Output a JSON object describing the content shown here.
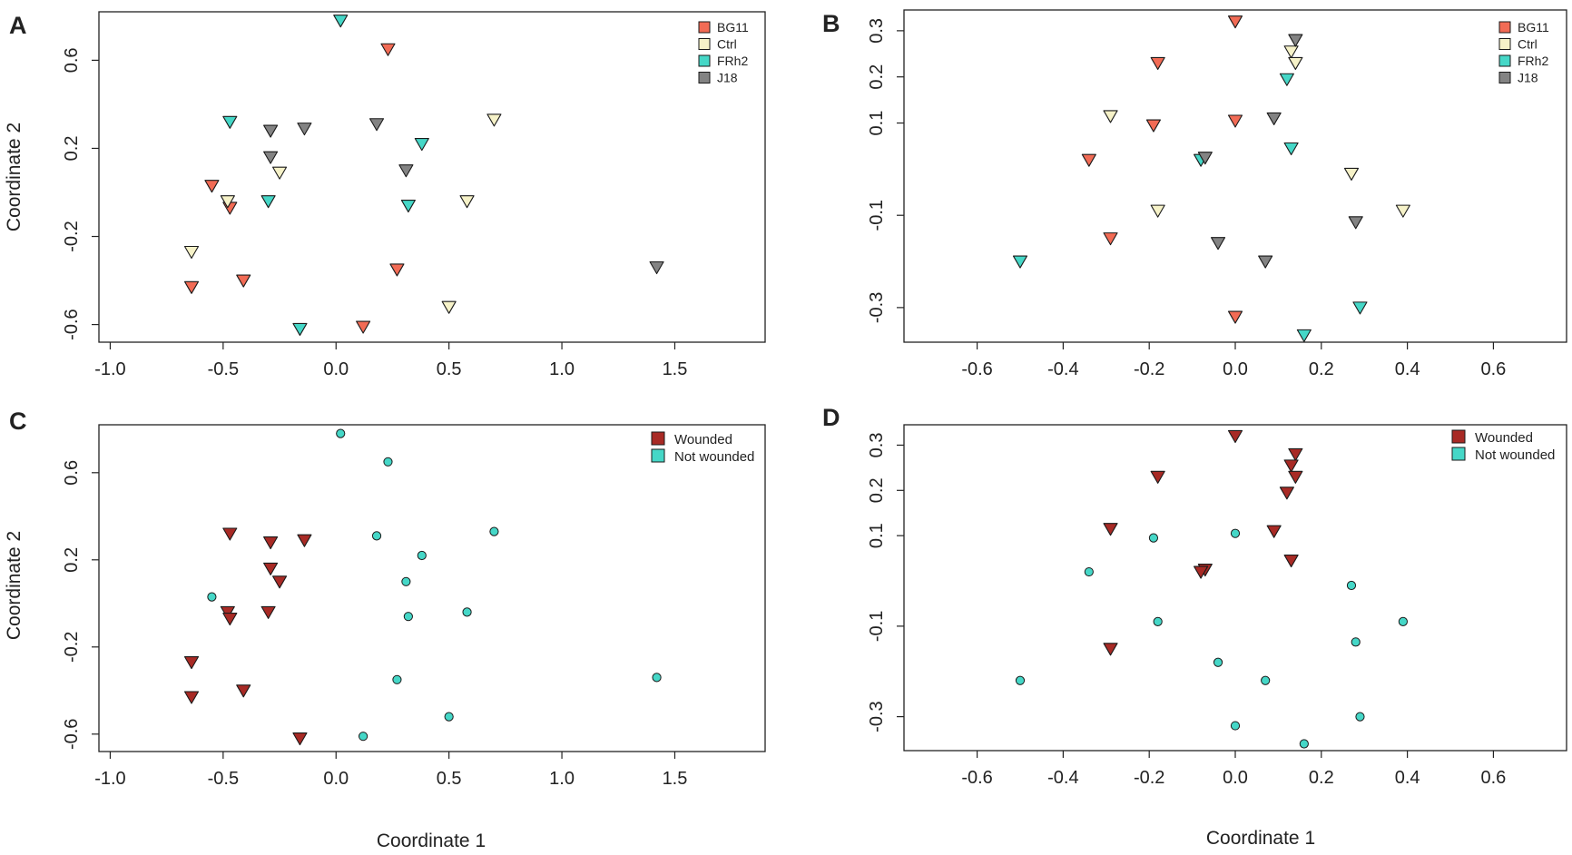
{
  "figure": {
    "x_axis_label": "Coordinate 1",
    "y_axis_label": "Coordinate 2"
  },
  "colors": {
    "BG11": "#f26b55",
    "Ctrl": "#f6f2c8",
    "FRh2": "#45d7c7",
    "J18": "#838383",
    "Wounded": "#a82a25",
    "Not wounded": "#45d7c7",
    "frame": "#222222"
  },
  "chart_data": [
    {
      "panel": "A",
      "type": "scatter",
      "marker": "triangle-down",
      "xlim": [
        -1.05,
        1.9
      ],
      "ylim": [
        -0.68,
        0.82
      ],
      "xticks": [
        -1.0,
        -0.5,
        0.0,
        0.5,
        1.0,
        1.5
      ],
      "xtick_labels": [
        "-1.0",
        "-0.5",
        "0.0",
        "0.5",
        "1.0",
        "1.5"
      ],
      "yticks": [
        -0.6,
        -0.2,
        0.2,
        0.6
      ],
      "ytick_labels": [
        "-0.6",
        "-0.2",
        "0.2",
        "0.6"
      ],
      "ylabel": "Coordinate 2",
      "legend": [
        "BG11",
        "Ctrl",
        "FRh2",
        "J18"
      ],
      "series": [
        {
          "name": "BG11",
          "points": [
            [
              0.23,
              0.65
            ],
            [
              -0.55,
              0.03
            ],
            [
              -0.47,
              -0.07
            ],
            [
              -0.41,
              -0.4
            ],
            [
              -0.64,
              -0.43
            ],
            [
              0.27,
              -0.35
            ],
            [
              0.12,
              -0.61
            ]
          ]
        },
        {
          "name": "Ctrl",
          "points": [
            [
              0.7,
              0.33
            ],
            [
              -0.25,
              0.09
            ],
            [
              -0.48,
              -0.04
            ],
            [
              -0.64,
              -0.27
            ],
            [
              0.58,
              -0.04
            ],
            [
              0.5,
              -0.52
            ]
          ]
        },
        {
          "name": "FRh2",
          "points": [
            [
              0.02,
              0.78
            ],
            [
              -0.47,
              0.32
            ],
            [
              0.38,
              0.22
            ],
            [
              -0.3,
              -0.04
            ],
            [
              0.32,
              -0.06
            ],
            [
              -0.16,
              -0.62
            ]
          ]
        },
        {
          "name": "J18",
          "points": [
            [
              -0.29,
              0.28
            ],
            [
              -0.14,
              0.29
            ],
            [
              0.18,
              0.31
            ],
            [
              -0.29,
              0.16
            ],
            [
              0.31,
              0.1
            ],
            [
              1.42,
              -0.34
            ]
          ]
        }
      ]
    },
    {
      "panel": "B",
      "type": "scatter",
      "marker": "triangle-down",
      "xlim": [
        -0.77,
        0.77
      ],
      "ylim": [
        -0.375,
        0.345
      ],
      "xticks": [
        -0.6,
        -0.4,
        -0.2,
        0.0,
        0.2,
        0.4,
        0.6
      ],
      "xtick_labels": [
        "-0.6",
        "-0.4",
        "-0.2",
        "0.0",
        "0.2",
        "0.4",
        "0.6"
      ],
      "yticks": [
        -0.3,
        -0.1,
        0.1,
        0.2,
        0.3
      ],
      "ytick_labels": [
        "-0.3",
        "-0.1",
        "0.1",
        "0.2",
        "0.3"
      ],
      "ylabel": "",
      "legend": [
        "BG11",
        "Ctrl",
        "FRh2",
        "J18"
      ],
      "series": [
        {
          "name": "BG11",
          "points": [
            [
              0.0,
              0.32
            ],
            [
              -0.18,
              0.23
            ],
            [
              -0.19,
              0.095
            ],
            [
              0.0,
              0.105
            ],
            [
              -0.34,
              0.02
            ],
            [
              -0.29,
              -0.15
            ],
            [
              0.0,
              -0.32
            ]
          ]
        },
        {
          "name": "Ctrl",
          "points": [
            [
              0.13,
              0.255
            ],
            [
              0.14,
              0.23
            ],
            [
              -0.29,
              0.115
            ],
            [
              0.27,
              -0.01
            ],
            [
              0.39,
              -0.09
            ],
            [
              -0.18,
              -0.09
            ]
          ]
        },
        {
          "name": "FRh2",
          "points": [
            [
              0.12,
              0.195
            ],
            [
              0.13,
              0.045
            ],
            [
              -0.08,
              0.02
            ],
            [
              -0.5,
              -0.2
            ],
            [
              0.29,
              -0.3
            ],
            [
              0.16,
              -0.36
            ]
          ]
        },
        {
          "name": "J18",
          "points": [
            [
              0.14,
              0.28
            ],
            [
              0.09,
              0.11
            ],
            [
              -0.07,
              0.025
            ],
            [
              -0.04,
              -0.16
            ],
            [
              0.07,
              -0.2
            ],
            [
              0.28,
              -0.115
            ]
          ]
        }
      ]
    },
    {
      "panel": "C",
      "type": "scatter",
      "marker": "mixed",
      "xlim": [
        -1.05,
        1.9
      ],
      "ylim": [
        -0.68,
        0.82
      ],
      "xticks": [
        -1.0,
        -0.5,
        0.0,
        0.5,
        1.0,
        1.5
      ],
      "xtick_labels": [
        "-1.0",
        "-0.5",
        "0.0",
        "0.5",
        "1.0",
        "1.5"
      ],
      "yticks": [
        -0.6,
        -0.2,
        0.2,
        0.6
      ],
      "ytick_labels": [
        "-0.6",
        "-0.2",
        "0.2",
        "0.6"
      ],
      "ylabel": "Coordinate 2",
      "legend": [
        "Wounded",
        "Not wounded"
      ],
      "series": [
        {
          "name": "Wounded",
          "marker": "triangle-down",
          "points": [
            [
              -0.47,
              0.32
            ],
            [
              -0.29,
              0.28
            ],
            [
              -0.14,
              0.29
            ],
            [
              -0.29,
              0.16
            ],
            [
              -0.25,
              0.1
            ],
            [
              -0.48,
              -0.04
            ],
            [
              -0.3,
              -0.04
            ],
            [
              -0.47,
              -0.07
            ],
            [
              -0.64,
              -0.27
            ],
            [
              -0.41,
              -0.4
            ],
            [
              -0.64,
              -0.43
            ],
            [
              -0.16,
              -0.62
            ]
          ]
        },
        {
          "name": "Not wounded",
          "marker": "circle",
          "points": [
            [
              0.02,
              0.78
            ],
            [
              0.23,
              0.65
            ],
            [
              0.7,
              0.33
            ],
            [
              0.18,
              0.31
            ],
            [
              0.38,
              0.22
            ],
            [
              0.31,
              0.1
            ],
            [
              -0.55,
              0.03
            ],
            [
              0.58,
              -0.04
            ],
            [
              0.32,
              -0.06
            ],
            [
              0.27,
              -0.35
            ],
            [
              1.42,
              -0.34
            ],
            [
              0.5,
              -0.52
            ],
            [
              0.12,
              -0.61
            ]
          ]
        }
      ]
    },
    {
      "panel": "D",
      "type": "scatter",
      "marker": "mixed",
      "xlim": [
        -0.77,
        0.77
      ],
      "ylim": [
        -0.375,
        0.345
      ],
      "xticks": [
        -0.6,
        -0.4,
        -0.2,
        0.0,
        0.2,
        0.4,
        0.6
      ],
      "xtick_labels": [
        "-0.6",
        "-0.4",
        "-0.2",
        "0.0",
        "0.2",
        "0.4",
        "0.6"
      ],
      "yticks": [
        -0.3,
        -0.1,
        0.1,
        0.2,
        0.3
      ],
      "ytick_labels": [
        "-0.3",
        "-0.1",
        "0.1",
        "0.2",
        "0.3"
      ],
      "ylabel": "",
      "legend": [
        "Wounded",
        "Not wounded"
      ],
      "series": [
        {
          "name": "Wounded",
          "marker": "triangle-down",
          "points": [
            [
              0.0,
              0.32
            ],
            [
              0.14,
              0.28
            ],
            [
              0.13,
              0.255
            ],
            [
              0.14,
              0.23
            ],
            [
              -0.18,
              0.23
            ],
            [
              0.12,
              0.195
            ],
            [
              -0.29,
              0.115
            ],
            [
              0.09,
              0.11
            ],
            [
              0.13,
              0.045
            ],
            [
              -0.07,
              0.025
            ],
            [
              -0.08,
              0.02
            ],
            [
              -0.29,
              -0.15
            ]
          ]
        },
        {
          "name": "Not wounded",
          "marker": "circle",
          "points": [
            [
              0.0,
              0.105
            ],
            [
              -0.19,
              0.095
            ],
            [
              -0.34,
              0.02
            ],
            [
              0.27,
              -0.01
            ],
            [
              -0.18,
              -0.09
            ],
            [
              0.39,
              -0.09
            ],
            [
              0.28,
              -0.135
            ],
            [
              -0.04,
              -0.18
            ],
            [
              0.07,
              -0.22
            ],
            [
              -0.5,
              -0.22
            ],
            [
              0.29,
              -0.3
            ],
            [
              0.0,
              -0.32
            ],
            [
              0.16,
              -0.36
            ]
          ]
        }
      ]
    }
  ]
}
